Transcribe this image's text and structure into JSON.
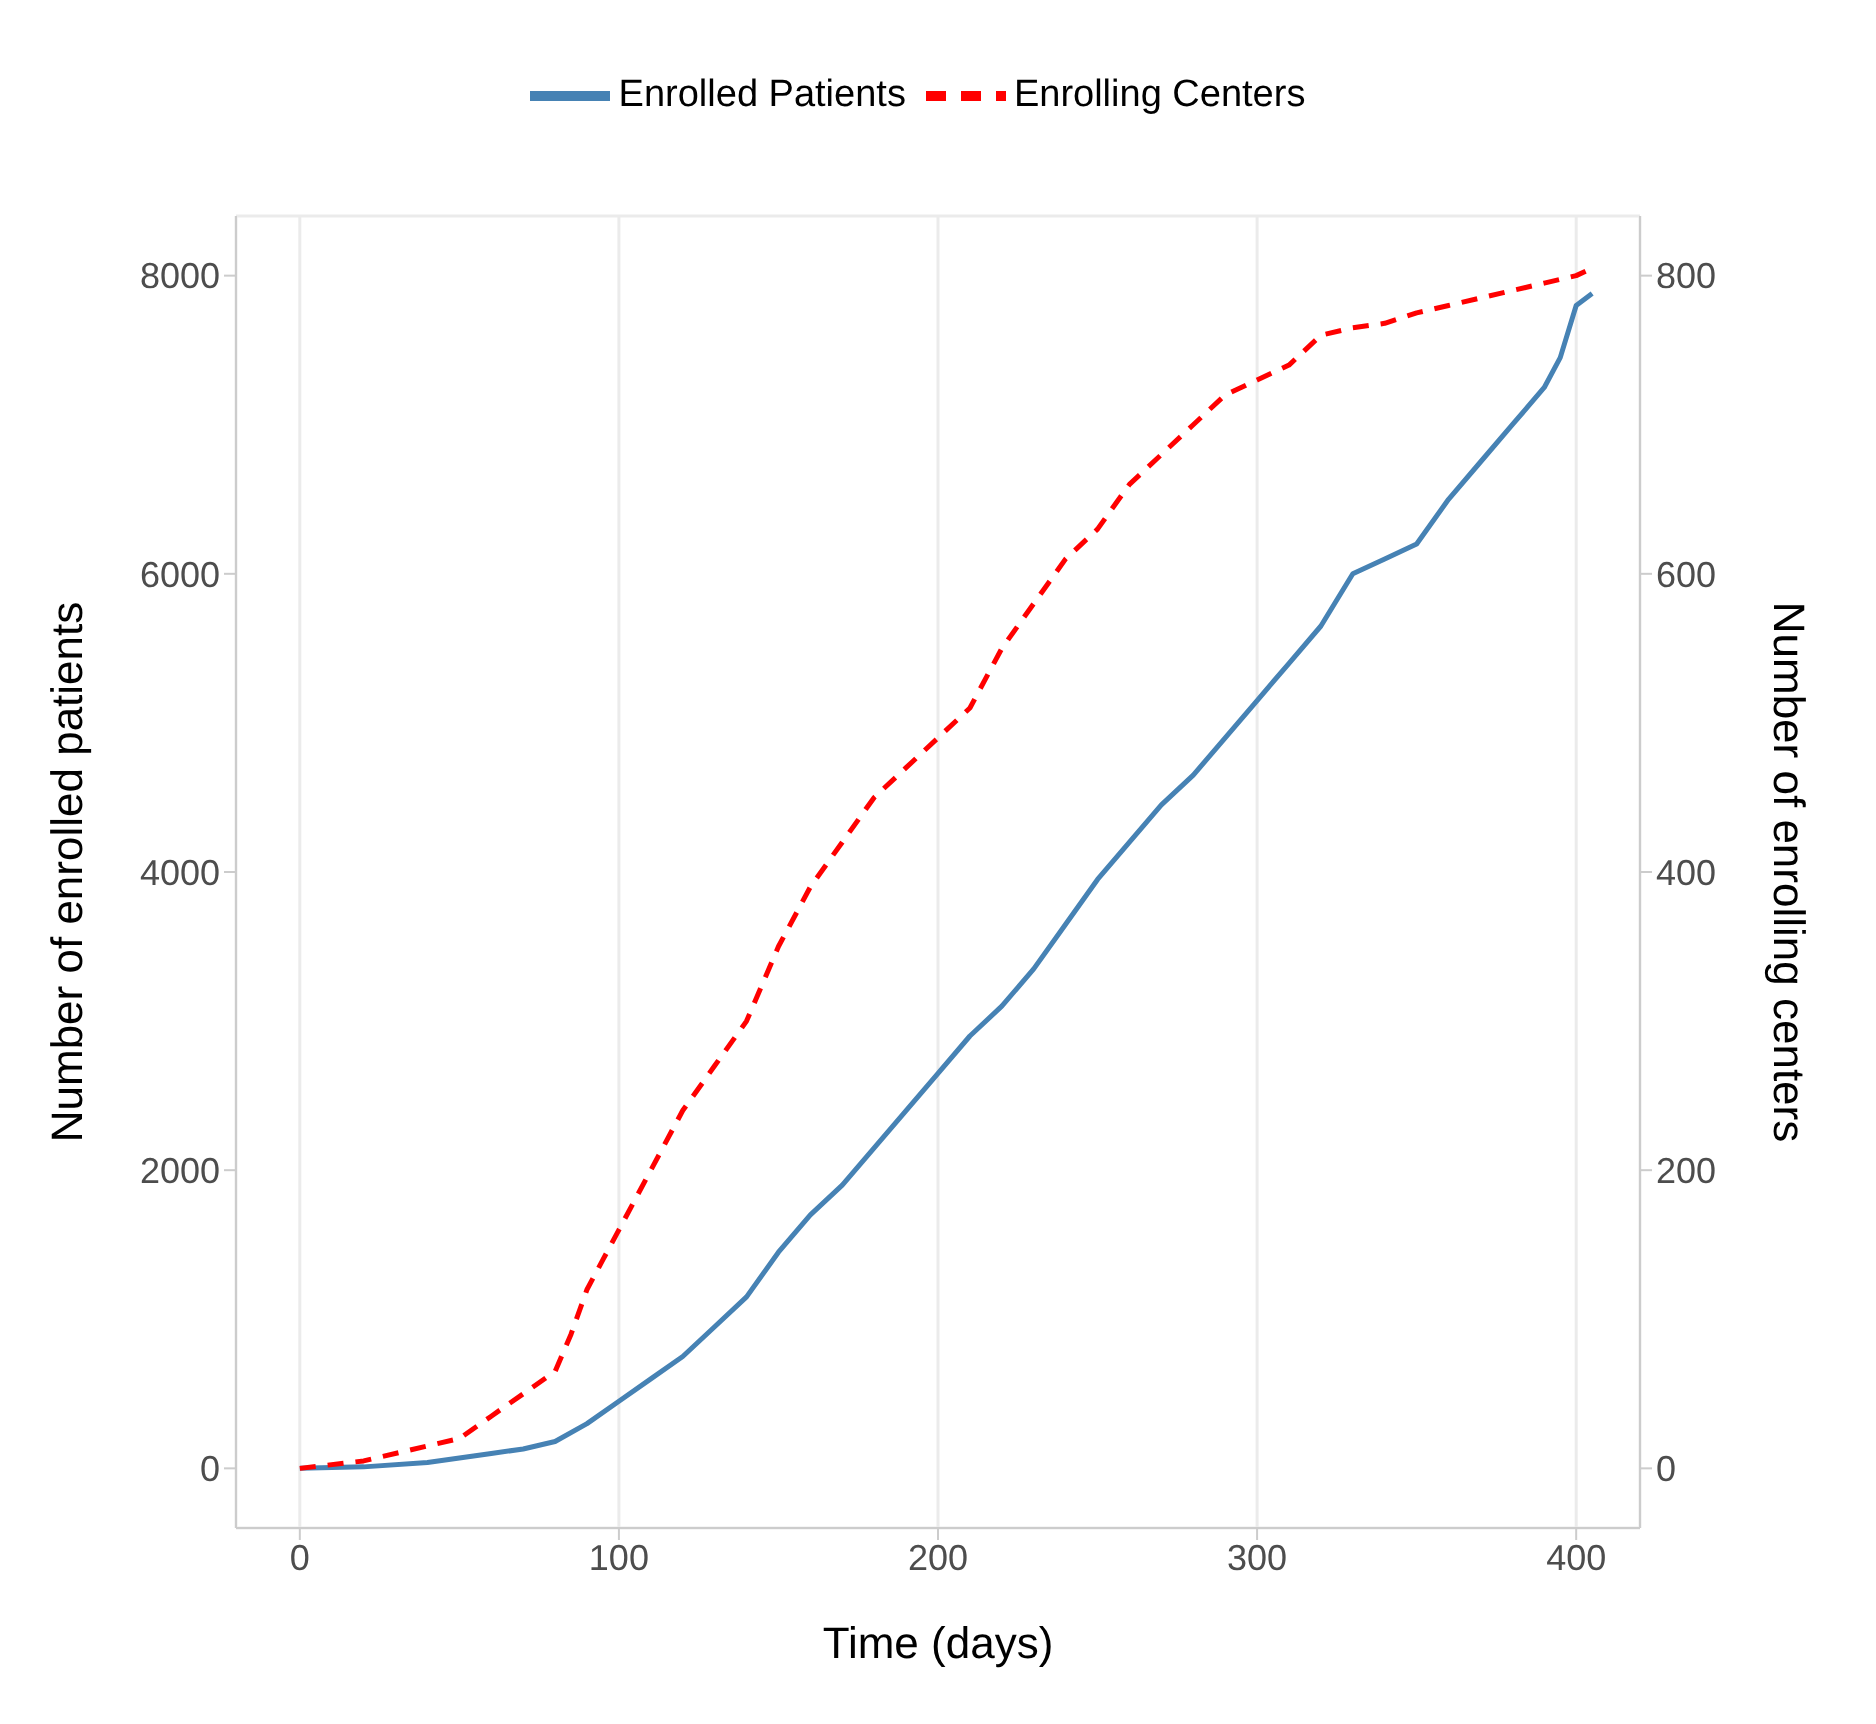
{
  "chart_data": {
    "type": "line",
    "xlabel": "Time (days)",
    "ylabel": "Number of enrolled patients",
    "y2label": "Number of enrolling centers",
    "xlim": [
      -20,
      420
    ],
    "xticks": [
      0,
      100,
      200,
      300,
      400
    ],
    "ylim": [
      -400,
      8400
    ],
    "yticks": [
      0,
      2000,
      4000,
      6000,
      8000
    ],
    "y2lim": [
      -40,
      840
    ],
    "y2ticks": [
      0,
      200,
      400,
      600,
      800
    ],
    "grid": true,
    "legend": "top",
    "marker": "none",
    "series": [
      {
        "name": "Enrolled Patients",
        "color": "#4682b4",
        "line_style": "solid",
        "x": [
          0,
          20,
          40,
          60,
          70,
          80,
          90,
          100,
          110,
          120,
          130,
          140,
          150,
          160,
          170,
          180,
          190,
          200,
          210,
          220,
          230,
          240,
          250,
          260,
          270,
          280,
          290,
          300,
          310,
          320,
          330,
          340,
          350,
          360,
          370,
          380,
          390,
          395,
          400,
          405
        ],
        "values": [
          0,
          10,
          40,
          100,
          130,
          180,
          300,
          450,
          600,
          750,
          950,
          1150,
          1450,
          1700,
          1900,
          2150,
          2400,
          2650,
          2900,
          3100,
          3350,
          3650,
          3950,
          4200,
          4450,
          4650,
          4900,
          5150,
          5400,
          5650,
          6000,
          6100,
          6200,
          6500,
          6750,
          7000,
          7250,
          7450,
          7800,
          7880
        ]
      },
      {
        "name": "Enrolling Centers",
        "color": "#ff0000",
        "line_style": "dashed",
        "axis": "y2",
        "x": [
          0,
          20,
          40,
          50,
          60,
          70,
          80,
          85,
          90,
          95,
          100,
          110,
          120,
          130,
          140,
          150,
          160,
          170,
          180,
          190,
          200,
          210,
          220,
          230,
          240,
          250,
          260,
          270,
          280,
          290,
          300,
          310,
          320,
          330,
          340,
          350,
          360,
          370,
          380,
          390,
          400,
          405
        ],
        "values": [
          0,
          5,
          15,
          20,
          35,
          50,
          65,
          90,
          120,
          140,
          160,
          200,
          240,
          270,
          300,
          350,
          390,
          420,
          450,
          470,
          490,
          510,
          550,
          580,
          610,
          630,
          660,
          680,
          700,
          720,
          730,
          740,
          760,
          765,
          768,
          775,
          780,
          785,
          790,
          795,
          800,
          805
        ]
      }
    ]
  }
}
